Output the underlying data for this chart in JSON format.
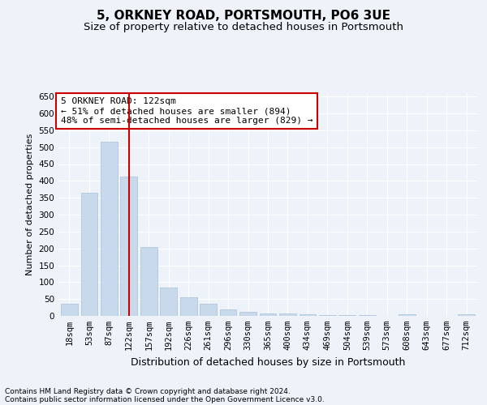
{
  "title": "5, ORKNEY ROAD, PORTSMOUTH, PO6 3UE",
  "subtitle": "Size of property relative to detached houses in Portsmouth",
  "xlabel": "Distribution of detached houses by size in Portsmouth",
  "ylabel": "Number of detached properties",
  "footnote1": "Contains HM Land Registry data © Crown copyright and database right 2024.",
  "footnote2": "Contains public sector information licensed under the Open Government Licence v3.0.",
  "annotation_line1": "5 ORKNEY ROAD: 122sqm",
  "annotation_line2": "← 51% of detached houses are smaller (894)",
  "annotation_line3": "48% of semi-detached houses are larger (829) →",
  "bar_color": "#c9d9ec",
  "bar_edge_color": "#a8bfd8",
  "vline_color": "#cc0000",
  "categories": [
    "18sqm",
    "53sqm",
    "87sqm",
    "122sqm",
    "157sqm",
    "192sqm",
    "226sqm",
    "261sqm",
    "296sqm",
    "330sqm",
    "365sqm",
    "400sqm",
    "434sqm",
    "469sqm",
    "504sqm",
    "539sqm",
    "573sqm",
    "608sqm",
    "643sqm",
    "677sqm",
    "712sqm"
  ],
  "values": [
    37,
    365,
    515,
    412,
    205,
    85,
    55,
    36,
    20,
    11,
    8,
    8,
    5,
    3,
    3,
    3,
    1,
    4,
    1,
    1,
    5
  ],
  "ylim": [
    0,
    660
  ],
  "yticks": [
    0,
    50,
    100,
    150,
    200,
    250,
    300,
    350,
    400,
    450,
    500,
    550,
    600,
    650
  ],
  "vline_x_index": 3,
  "background_color": "#eef2f9",
  "grid_color": "#ffffff",
  "annotation_box_color": "#ffffff",
  "annotation_box_edge": "#cc0000",
  "title_fontsize": 11,
  "subtitle_fontsize": 9.5,
  "xlabel_fontsize": 9,
  "ylabel_fontsize": 8,
  "tick_fontsize": 7.5,
  "annotation_fontsize": 8,
  "footnote_fontsize": 6.5
}
